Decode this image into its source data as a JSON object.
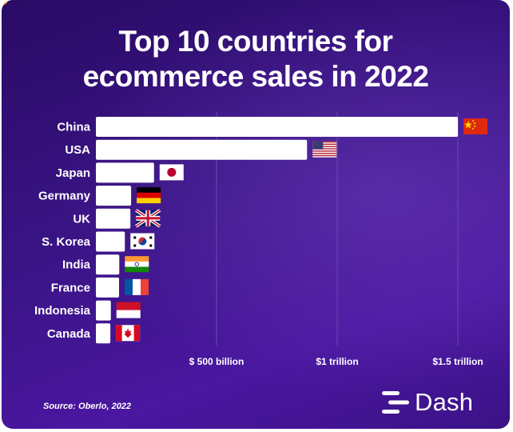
{
  "title_lines": [
    "Top 10 countries for",
    "ecommerce sales in 2022"
  ],
  "source": "Source: Oberlo, 2022",
  "brand": {
    "name": "Dash",
    "icon": "dash-logo-icon"
  },
  "colors": {
    "background": "#3a1486",
    "bar": "#ffffff",
    "text": "#ffffff",
    "grid": "#6a4aa8"
  },
  "chart_data": {
    "type": "bar",
    "orientation": "horizontal",
    "title": "Top 10 countries for ecommerce sales in 2022",
    "categories": [
      "China",
      "USA",
      "Japan",
      "Germany",
      "UK",
      "S. Korea",
      "India",
      "France",
      "Indonesia",
      "Canada"
    ],
    "values": [
      1500,
      875,
      241,
      146,
      143,
      120,
      97,
      96,
      62,
      60
    ],
    "unit": "billion USD",
    "flags": [
      "china-flag-icon",
      "usa-flag-icon",
      "japan-flag-icon",
      "germany-flag-icon",
      "uk-flag-icon",
      "south-korea-flag-icon",
      "india-flag-icon",
      "france-flag-icon",
      "indonesia-flag-icon",
      "canada-flag-icon"
    ],
    "x_ticks": [
      {
        "value": 500,
        "label": "$ 500 billion"
      },
      {
        "value": 1000,
        "label": "$1 trillion"
      },
      {
        "value": 1500,
        "label": "$1.5 trillion"
      }
    ],
    "xlim": [
      0,
      1500
    ],
    "grid": true,
    "legend": "none"
  }
}
